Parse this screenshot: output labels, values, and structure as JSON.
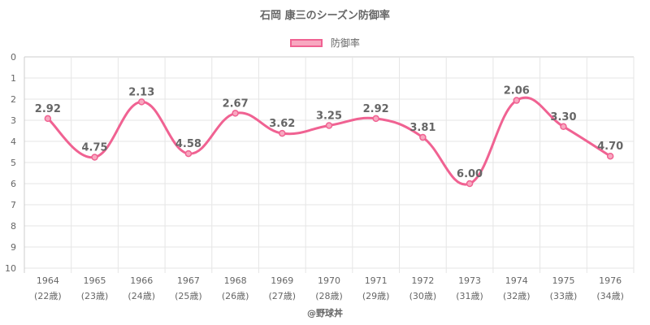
{
  "chart_data": {
    "type": "line",
    "title": "石岡 康三のシーズン防御率",
    "categories": [
      "1964",
      "1965",
      "1966",
      "1967",
      "1968",
      "1969",
      "1970",
      "1971",
      "1972",
      "1973",
      "1974",
      "1975",
      "1976"
    ],
    "age_labels": [
      "(22歳)",
      "(23歳)",
      "(24歳)",
      "(25歳)",
      "(26歳)",
      "(27歳)",
      "(28歳)",
      "(29歳)",
      "(30歳)",
      "(31歳)",
      "(32歳)",
      "(33歳)",
      "(34歳)"
    ],
    "series": [
      {
        "name": "防御率",
        "values": [
          2.92,
          4.75,
          2.13,
          4.58,
          2.67,
          3.62,
          3.25,
          2.92,
          3.81,
          6.0,
          2.06,
          3.3,
          4.7
        ],
        "labels": [
          "2.92",
          "4.75",
          "2.13",
          "4.58",
          "2.67",
          "3.62",
          "3.25",
          "2.92",
          "3.81",
          "6.00",
          "2.06",
          "3.30",
          "4.70"
        ]
      }
    ],
    "ylim": [
      0,
      10
    ],
    "y_reversed": true,
    "yticks": [
      "0",
      "1",
      "2",
      "3",
      "4",
      "5",
      "6",
      "7",
      "8",
      "9",
      "10"
    ],
    "legend_position": "top-center",
    "grid": true,
    "line_color": "#f06292",
    "fill_color": "#f8a8c0"
  },
  "credit": "@野球丼"
}
